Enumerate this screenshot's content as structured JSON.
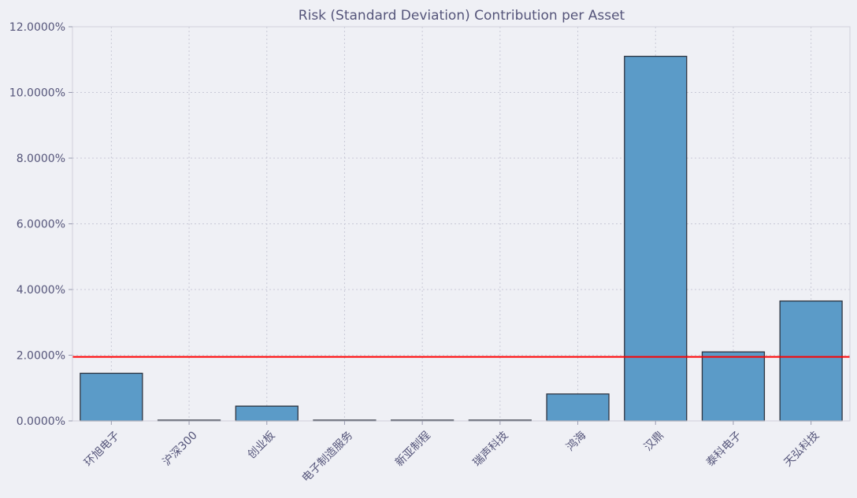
{
  "chart_data": {
    "type": "bar",
    "title": "Risk (Standard Deviation) Contribution per Asset",
    "xlabel": "",
    "ylabel": "",
    "categories": [
      "环旭电子",
      "沪深300",
      "创业板",
      "电子制造服务",
      "新亚制程",
      "瑞声科技",
      "鸿海",
      "汉鼎",
      "泰科电子",
      "天弘科技"
    ],
    "values": [
      1.45,
      0.02,
      0.45,
      0.02,
      0.02,
      0.02,
      0.82,
      11.1,
      2.1,
      3.65
    ],
    "value_format": "percent_4dp",
    "ylim": [
      0,
      12
    ],
    "yticks": [
      0,
      2,
      4,
      6,
      8,
      10,
      12
    ],
    "ytick_labels": [
      "0.0000%",
      "2.0000%",
      "4.0000%",
      "6.0000%",
      "8.0000%",
      "10.0000%",
      "12.0000%"
    ],
    "reference_line": {
      "value": 1.95,
      "color": "#ff0000"
    },
    "grid": true,
    "bar_color": "#5b9bc8",
    "bar_edge_color": "#2e3440",
    "background_color": "#eff0f5",
    "text_color": "#55557a"
  }
}
